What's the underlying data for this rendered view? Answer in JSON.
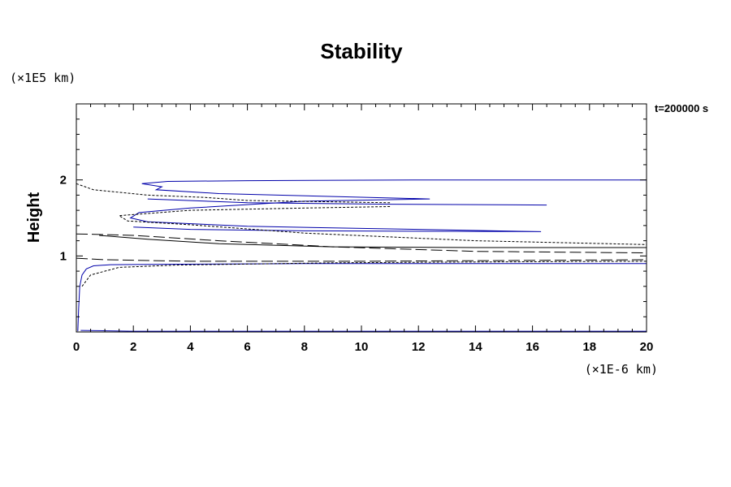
{
  "chart_data": {
    "type": "line",
    "title": "Stability",
    "ylabel": "Height",
    "xlabel": "",
    "x_unit_label": "(×1E-6 km)",
    "y_unit_label": "(×1E5 km)",
    "annotation": "t=200000 s",
    "xlim": [
      0,
      20
    ],
    "ylim": [
      0,
      3
    ],
    "x_ticks": [
      0,
      2,
      4,
      6,
      8,
      10,
      12,
      14,
      16,
      18,
      20
    ],
    "y_ticks": [
      1,
      2
    ],
    "grid": false,
    "legend": false,
    "series": [
      {
        "style": "solid",
        "color": "#0000aa",
        "x": [
          0.05,
          0.08,
          0.12,
          0.2,
          0.35,
          0.6,
          1.2,
          3,
          8,
          14,
          20
        ],
        "y": [
          0.01,
          0.3,
          0.6,
          0.75,
          0.83,
          0.87,
          0.885,
          0.89,
          0.9,
          0.9,
          0.9
        ]
      },
      {
        "style": "solid",
        "color": "#0000aa",
        "x": [
          20,
          12,
          6,
          3.2,
          2.3,
          3.0,
          2.8,
          5,
          12.4,
          8,
          4,
          2.2,
          1.9,
          2.5,
          6,
          16.3,
          8,
          4,
          2
        ],
        "y": [
          2.0,
          2.0,
          1.99,
          1.98,
          1.95,
          1.91,
          1.87,
          1.82,
          1.75,
          1.72,
          1.63,
          1.57,
          1.5,
          1.45,
          1.39,
          1.32,
          1.33,
          1.35,
          1.38
        ]
      },
      {
        "style": "solid",
        "color": "#0000aa",
        "x": [
          2.5,
          6,
          11,
          16.5
        ],
        "y": [
          1.75,
          1.7,
          1.68,
          1.67
        ]
      },
      {
        "style": "dotted",
        "color": "#000000",
        "x": [
          0,
          0.6,
          2.5,
          4.5,
          6,
          11
        ],
        "y": [
          1.95,
          1.87,
          1.8,
          1.77,
          1.73,
          1.7
        ]
      },
      {
        "style": "dotted",
        "color": "#000000",
        "x": [
          11,
          8,
          4,
          1.5,
          1.8,
          4,
          8,
          14,
          20
        ],
        "y": [
          1.65,
          1.63,
          1.6,
          1.53,
          1.46,
          1.41,
          1.3,
          1.2,
          1.15
        ]
      },
      {
        "style": "dotted",
        "color": "#000000",
        "x": [
          0.2,
          0.5,
          1.5,
          3.5,
          9,
          14,
          20
        ],
        "y": [
          0.6,
          0.75,
          0.85,
          0.88,
          0.91,
          0.92,
          0.93
        ]
      },
      {
        "style": "longdash",
        "color": "#000000",
        "x": [
          0,
          2,
          5,
          9,
          14,
          20
        ],
        "y": [
          1.29,
          1.27,
          1.2,
          1.12,
          1.06,
          1.04
        ]
      },
      {
        "style": "longdash",
        "color": "#000000",
        "x": [
          0,
          1,
          4,
          10,
          15,
          20
        ],
        "y": [
          0.97,
          0.95,
          0.93,
          0.93,
          0.94,
          0.95
        ]
      },
      {
        "style": "solid",
        "color": "#000000",
        "x": [
          0.8,
          2.5,
          5,
          9,
          14,
          20
        ],
        "y": [
          1.27,
          1.22,
          1.16,
          1.12,
          1.11,
          1.11
        ]
      },
      {
        "style": "solid",
        "color": "#0000aa",
        "x": [
          0.15,
          2,
          10,
          20
        ],
        "y": [
          0.02,
          0.01,
          0.01,
          0.01
        ]
      }
    ]
  }
}
